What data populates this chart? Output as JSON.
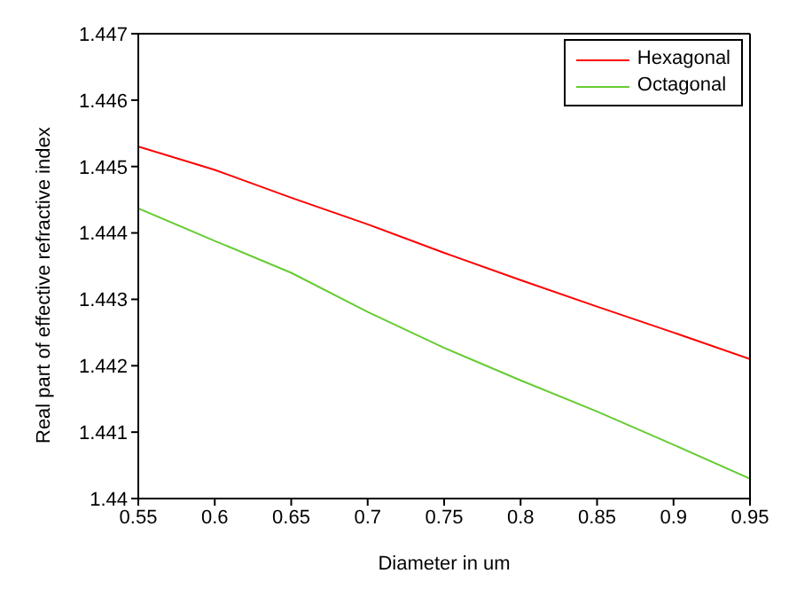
{
  "chart_data": {
    "type": "line",
    "xlabel": "Diameter in um",
    "ylabel": "Real part of effective refractive index",
    "x": [
      0.55,
      0.6,
      0.65,
      0.7,
      0.75,
      0.8,
      0.85,
      0.9,
      0.95
    ],
    "series": [
      {
        "name": "Hexagonal",
        "color": "#ff0000",
        "values": [
          1.4453,
          1.44495,
          1.44453,
          1.44413,
          1.4437,
          1.44329,
          1.44289,
          1.4425,
          1.4421
        ]
      },
      {
        "name": "Octagonal",
        "color": "#66cc33",
        "values": [
          1.44437,
          1.44388,
          1.4434,
          1.44281,
          1.44227,
          1.44178,
          1.44131,
          1.44081,
          1.4403
        ]
      }
    ],
    "xlim": [
      0.55,
      0.95
    ],
    "xticks": [
      0.55,
      0.6,
      0.65,
      0.7,
      0.75,
      0.8,
      0.85,
      0.9,
      0.95
    ],
    "ylim": [
      1.44,
      1.447
    ],
    "yticks": [
      1.44,
      1.441,
      1.442,
      1.443,
      1.444,
      1.445,
      1.446,
      1.447
    ],
    "grid": false,
    "legend": "top right",
    "marker": "none",
    "line_style": "solid"
  }
}
